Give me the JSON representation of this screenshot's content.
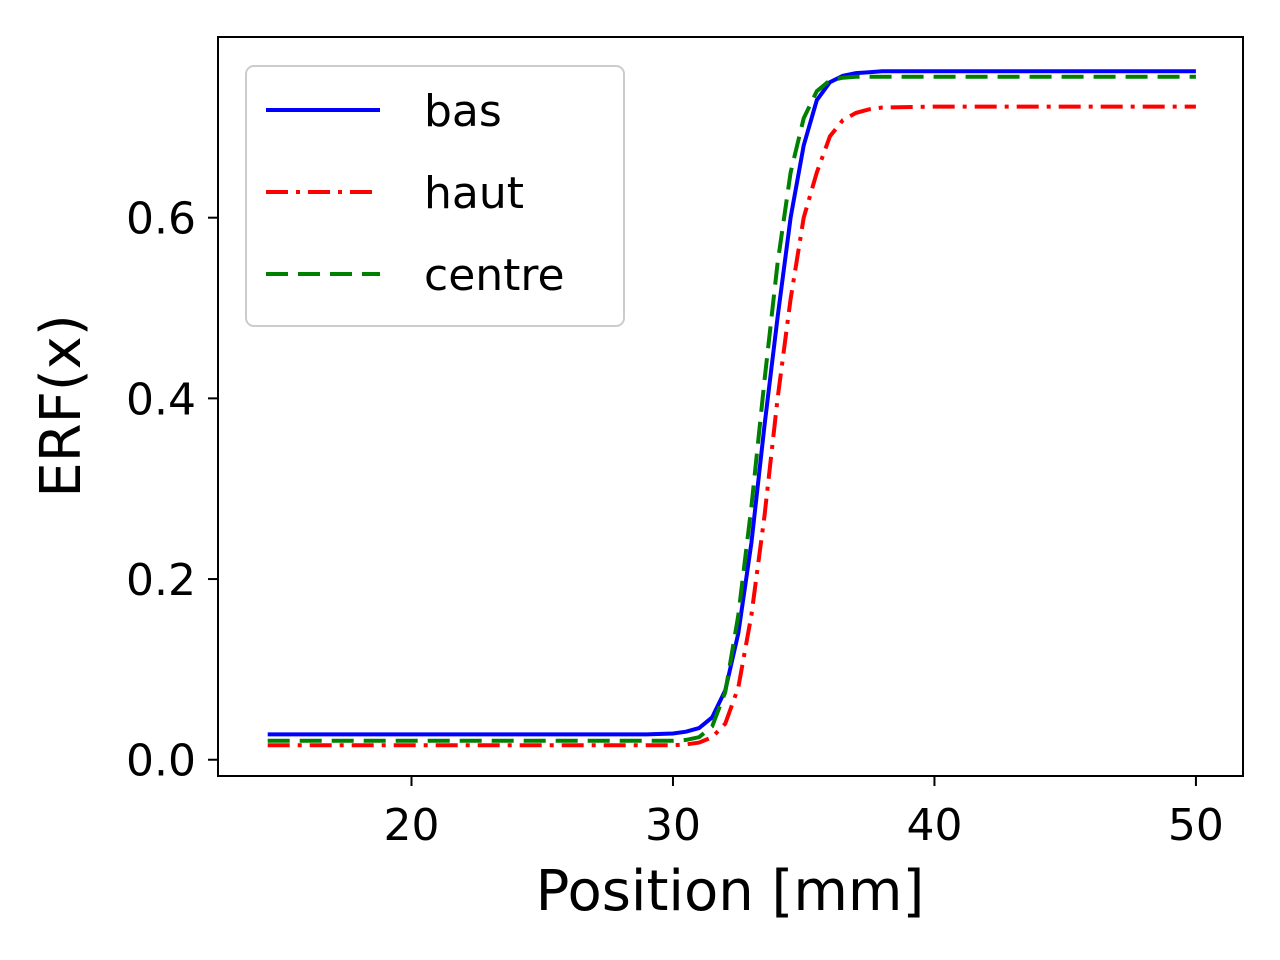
{
  "chart_data": {
    "type": "line",
    "title": "",
    "xlabel": "Position [mm]",
    "ylabel": "ERF(x)",
    "xlim": [
      12.6,
      51.8
    ],
    "ylim": [
      -0.018,
      0.8
    ],
    "xticks": [
      20,
      30,
      40,
      50
    ],
    "yticks": [
      0.0,
      0.2,
      0.4,
      0.6
    ],
    "xtick_labels": [
      "20",
      "30",
      "40",
      "50"
    ],
    "ytick_labels": [
      "0.0",
      "0.2",
      "0.4",
      "0.6"
    ],
    "grid": false,
    "legend_position": "top-left",
    "series": [
      {
        "name": "bas",
        "color": "#0000ff",
        "style": "solid",
        "x": [
          14.5,
          20,
          25,
          29,
          30,
          30.5,
          31,
          31.5,
          32,
          32.5,
          33,
          33.5,
          34,
          34.5,
          35,
          35.5,
          36,
          36.5,
          37,
          37.5,
          38,
          40,
          45,
          50
        ],
        "y": [
          0.028,
          0.028,
          0.028,
          0.028,
          0.029,
          0.031,
          0.035,
          0.047,
          0.077,
          0.14,
          0.24,
          0.37,
          0.49,
          0.6,
          0.68,
          0.73,
          0.75,
          0.757,
          0.76,
          0.761,
          0.762,
          0.762,
          0.762,
          0.762
        ]
      },
      {
        "name": "haut",
        "color": "#ff0000",
        "style": "dashdot",
        "x": [
          14.5,
          20,
          25,
          30,
          30.5,
          31,
          31.5,
          32,
          32.5,
          33,
          33.5,
          34,
          34.5,
          35,
          35.5,
          36,
          36.5,
          37,
          37.5,
          38,
          40,
          45,
          50
        ],
        "y": [
          0.016,
          0.016,
          0.016,
          0.016,
          0.017,
          0.019,
          0.025,
          0.04,
          0.08,
          0.16,
          0.27,
          0.4,
          0.51,
          0.6,
          0.65,
          0.69,
          0.708,
          0.716,
          0.72,
          0.722,
          0.723,
          0.723,
          0.723
        ]
      },
      {
        "name": "centre",
        "color": "#008000",
        "style": "dashed",
        "x": [
          14.5,
          20,
          25,
          30,
          30.5,
          31,
          31.5,
          32,
          32.5,
          33,
          33.5,
          34,
          34.5,
          35,
          35.5,
          36,
          36.5,
          37,
          37.5,
          38,
          40,
          45,
          50
        ],
        "y": [
          0.021,
          0.021,
          0.021,
          0.021,
          0.022,
          0.025,
          0.037,
          0.075,
          0.16,
          0.28,
          0.42,
          0.55,
          0.65,
          0.71,
          0.74,
          0.752,
          0.755,
          0.756,
          0.756,
          0.756,
          0.756,
          0.756,
          0.756
        ]
      }
    ]
  }
}
